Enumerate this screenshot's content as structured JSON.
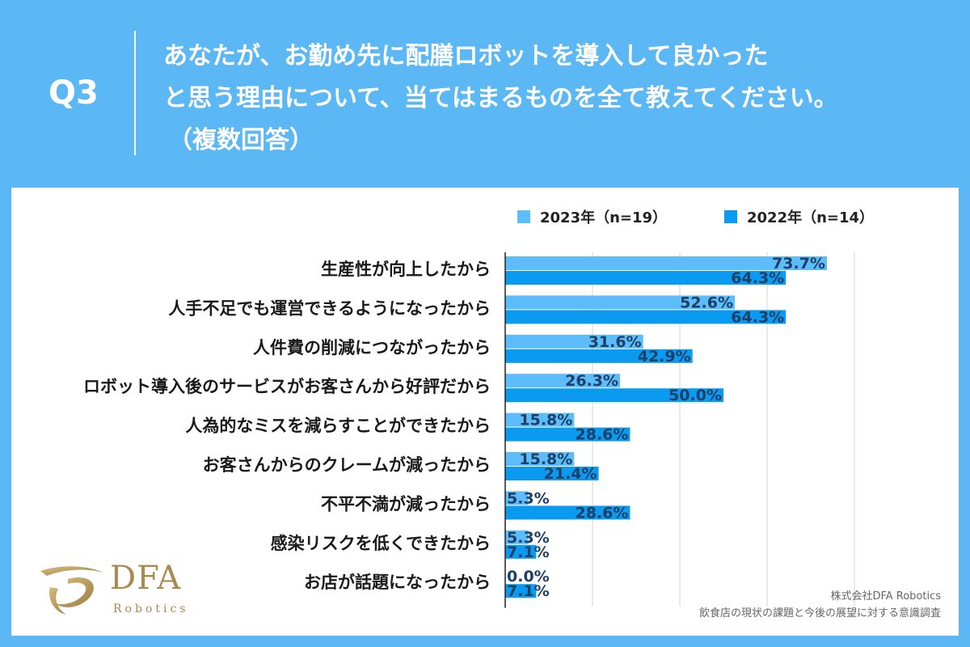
{
  "header": {
    "q_label": "Q3",
    "question_lines": [
      "あなたが、お勤め先に配膳ロボットを導入して良かった",
      "と思う理由について、当てはまるものを全て教えてください。",
      "（複数回答）"
    ]
  },
  "colors": {
    "background": "#5bb8f5",
    "panel": "#ffffff",
    "series_2023": "#5cbdfa",
    "series_2022": "#0a9af0",
    "value_label": "#1e3f66"
  },
  "chart_data": {
    "type": "bar",
    "orientation": "horizontal",
    "title": "あなたが、お勤め先に配膳ロボットを導入して良かったと思う理由について、当てはまるものを全て教えてください。（複数回答）",
    "categories": [
      "生産性が向上したから",
      "人手不足でも運営できるようになったから",
      "人件費の削減につながったから",
      "ロボット導入後のサービスがお客さんから好評だから",
      "人為的なミスを減らすことができたから",
      "お客さんからのクレームが減ったから",
      "不平不満が減ったから",
      "感染リスクを低くできたから",
      "お店が話題になったから"
    ],
    "series": [
      {
        "name": "2023年（n=19）",
        "values": [
          73.7,
          52.6,
          31.6,
          26.3,
          15.8,
          15.8,
          5.3,
          5.3,
          0.0
        ],
        "labels": [
          "73.7%",
          "52.6%",
          "31.6%",
          "26.3%",
          "15.8%",
          "15.8%",
          "5.3%",
          "5.3%",
          "0.0%"
        ],
        "color": "#5cbdfa"
      },
      {
        "name": "2022年（n=14）",
        "values": [
          64.3,
          64.3,
          42.9,
          50.0,
          28.6,
          21.4,
          28.6,
          7.1,
          7.1
        ],
        "labels": [
          "64.3%",
          "64.3%",
          "42.9%",
          "50.0%",
          "28.6%",
          "21.4%",
          "28.6%",
          "7.1%",
          "7.1%"
        ],
        "color": "#0a9af0"
      }
    ],
    "xlim": [
      0,
      80
    ],
    "grid": true,
    "legend_position": "top"
  },
  "logo": {
    "name": "DFA",
    "sub": "Robotics"
  },
  "footer": {
    "company": "株式会社DFA Robotics",
    "survey": "飲食店の現状の課題と今後の展望に対する意識調査"
  }
}
